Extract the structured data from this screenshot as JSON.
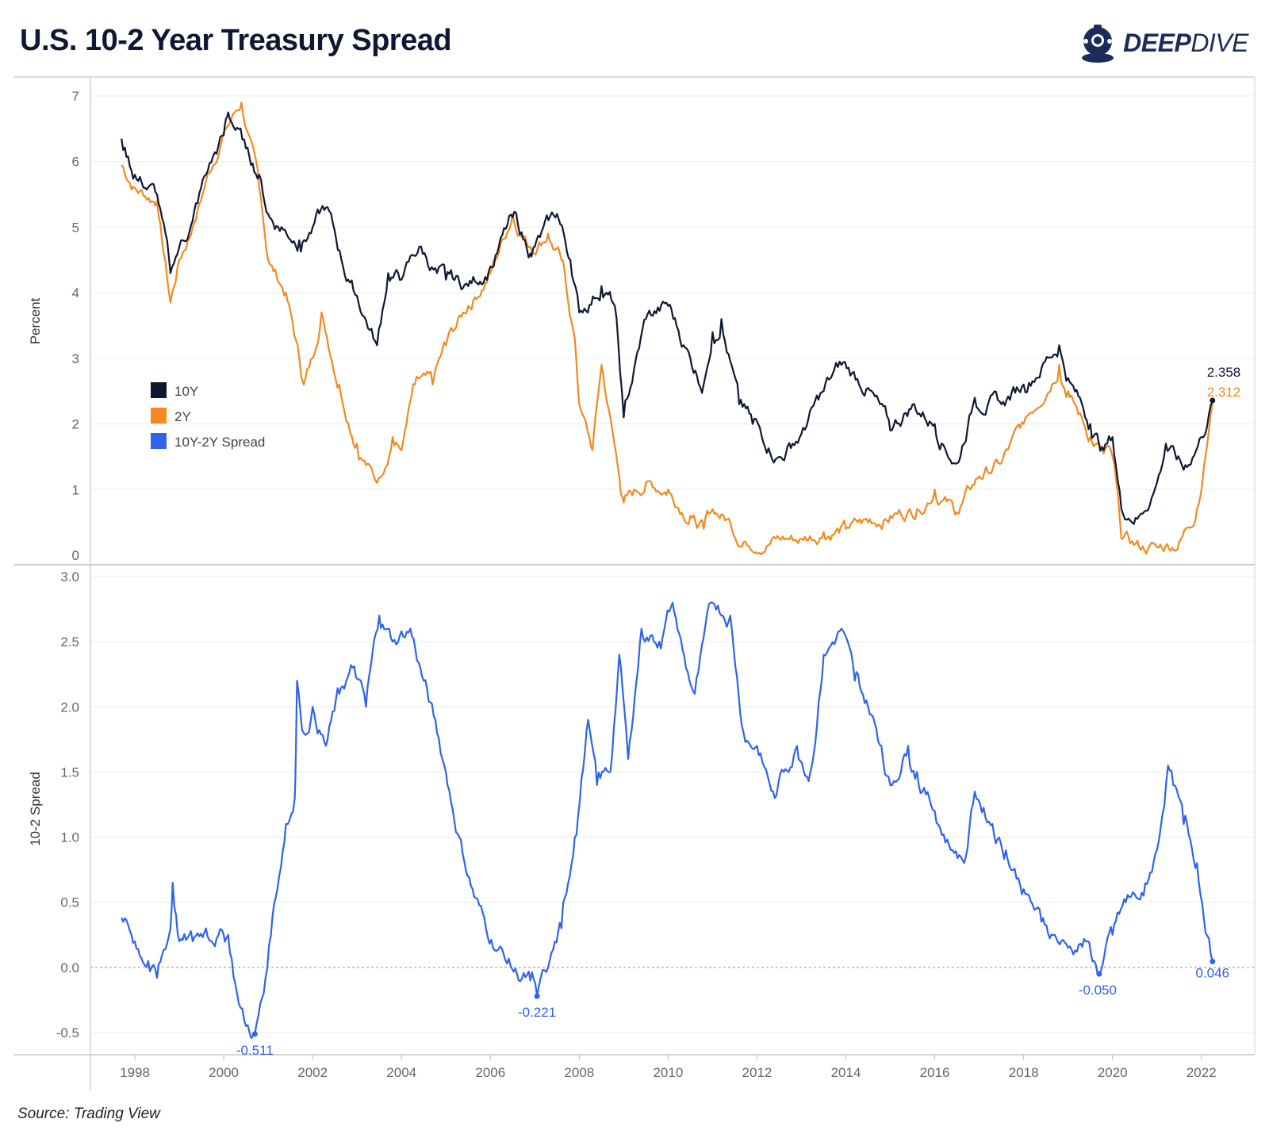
{
  "header": {
    "title": "U.S. 10-2 Year Treasury Spread",
    "brand_bold": "DEEP",
    "brand_light": "DIVE"
  },
  "footer": {
    "source": "Source: Trading View"
  },
  "colors": {
    "y10": "#0f1733",
    "y2": "#f28a1e",
    "spread": "#2e63ea",
    "grid": "#ececec"
  },
  "chart_data": [
    {
      "type": "line",
      "title": "U.S. 10-2 Year Treasury Spread",
      "ylabel": "Percent",
      "ylim": [
        0,
        7
      ],
      "yticks": [
        "0",
        "1",
        "2",
        "3",
        "4",
        "5",
        "6",
        "7"
      ],
      "legend": [
        "10Y",
        "2Y",
        "10Y-2Y Spread"
      ],
      "series": [
        {
          "name": "10Y",
          "points": [
            [
              1997.7,
              6.35
            ],
            [
              1998.0,
              5.8
            ],
            [
              1998.5,
              5.5
            ],
            [
              1998.8,
              4.3
            ],
            [
              1999.0,
              4.7
            ],
            [
              1999.3,
              5.1
            ],
            [
              1999.6,
              5.8
            ],
            [
              2000.0,
              6.4
            ],
            [
              2000.1,
              6.75
            ],
            [
              2000.5,
              6.2
            ],
            [
              2000.8,
              5.8
            ],
            [
              2001.0,
              5.2
            ],
            [
              2001.3,
              5.0
            ],
            [
              2001.7,
              4.8
            ],
            [
              2002.0,
              5.0
            ],
            [
              2002.3,
              5.3
            ],
            [
              2002.8,
              4.2
            ],
            [
              2003.0,
              3.95
            ],
            [
              2003.45,
              3.2
            ],
            [
              2003.7,
              4.3
            ],
            [
              2004.0,
              4.2
            ],
            [
              2004.4,
              4.7
            ],
            [
              2004.8,
              4.3
            ],
            [
              2005.0,
              4.2
            ],
            [
              2005.5,
              4.1
            ],
            [
              2006.0,
              4.4
            ],
            [
              2006.5,
              5.15
            ],
            [
              2006.9,
              4.6
            ],
            [
              2007.0,
              4.7
            ],
            [
              2007.5,
              5.2
            ],
            [
              2007.8,
              4.5
            ],
            [
              2008.0,
              3.7
            ],
            [
              2008.5,
              4.1
            ],
            [
              2008.8,
              3.8
            ],
            [
              2009.0,
              2.1
            ],
            [
              2009.5,
              3.6
            ],
            [
              2010.0,
              3.8
            ],
            [
              2010.5,
              3.0
            ],
            [
              2010.8,
              2.6
            ],
            [
              2011.0,
              3.4
            ],
            [
              2011.2,
              3.6
            ],
            [
              2011.6,
              2.3
            ],
            [
              2011.9,
              2.0
            ],
            [
              2012.5,
              1.5
            ],
            [
              2012.8,
              1.7
            ],
            [
              2013.0,
              1.85
            ],
            [
              2013.5,
              2.5
            ],
            [
              2013.9,
              2.9
            ],
            [
              2014.5,
              2.55
            ],
            [
              2015.0,
              1.9
            ],
            [
              2015.5,
              2.3
            ],
            [
              2016.0,
              2.0
            ],
            [
              2016.5,
              1.4
            ],
            [
              2016.9,
              2.4
            ],
            [
              2017.5,
              2.3
            ],
            [
              2018.0,
              2.6
            ],
            [
              2018.8,
              3.2
            ],
            [
              2019.0,
              2.7
            ],
            [
              2019.5,
              2.0
            ],
            [
              2019.8,
              1.6
            ],
            [
              2020.0,
              1.8
            ],
            [
              2020.2,
              0.7
            ],
            [
              2020.6,
              0.6
            ],
            [
              2021.0,
              1.1
            ],
            [
              2021.2,
              1.7
            ],
            [
              2021.6,
              1.3
            ],
            [
              2022.0,
              1.8
            ],
            [
              2022.25,
              2.358
            ]
          ]
        },
        {
          "name": "2Y",
          "points": [
            [
              1997.7,
              5.95
            ],
            [
              1998.0,
              5.6
            ],
            [
              1998.5,
              5.4
            ],
            [
              1998.8,
              3.85
            ],
            [
              1999.0,
              4.5
            ],
            [
              1999.3,
              5.0
            ],
            [
              1999.6,
              5.7
            ],
            [
              2000.0,
              6.45
            ],
            [
              2000.4,
              6.9
            ],
            [
              2000.8,
              5.6
            ],
            [
              2001.0,
              4.5
            ],
            [
              2001.4,
              4.0
            ],
            [
              2001.7,
              3.0
            ],
            [
              2001.8,
              2.6
            ],
            [
              2002.0,
              3.0
            ],
            [
              2002.2,
              3.7
            ],
            [
              2002.6,
              2.6
            ],
            [
              2003.0,
              1.7
            ],
            [
              2003.45,
              1.1
            ],
            [
              2003.8,
              1.8
            ],
            [
              2004.0,
              1.6
            ],
            [
              2004.3,
              2.6
            ],
            [
              2004.7,
              2.6
            ],
            [
              2005.0,
              3.2
            ],
            [
              2005.5,
              3.8
            ],
            [
              2006.0,
              4.3
            ],
            [
              2006.5,
              5.2
            ],
            [
              2006.9,
              4.7
            ],
            [
              2007.3,
              4.9
            ],
            [
              2007.6,
              4.5
            ],
            [
              2007.9,
              3.3
            ],
            [
              2008.0,
              2.3
            ],
            [
              2008.3,
              1.6
            ],
            [
              2008.5,
              2.9
            ],
            [
              2008.9,
              1.2
            ],
            [
              2009.0,
              0.8
            ],
            [
              2009.5,
              1.1
            ],
            [
              2010.0,
              1.0
            ],
            [
              2010.5,
              0.6
            ],
            [
              2010.8,
              0.4
            ],
            [
              2011.0,
              0.7
            ],
            [
              2011.4,
              0.5
            ],
            [
              2011.7,
              0.2
            ],
            [
              2012.5,
              0.25
            ],
            [
              2013.0,
              0.25
            ],
            [
              2013.5,
              0.35
            ],
            [
              2014.0,
              0.4
            ],
            [
              2014.5,
              0.5
            ],
            [
              2015.0,
              0.6
            ],
            [
              2015.6,
              0.7
            ],
            [
              2016.0,
              1.0
            ],
            [
              2016.5,
              0.65
            ],
            [
              2017.0,
              1.2
            ],
            [
              2017.5,
              1.4
            ],
            [
              2018.0,
              2.0
            ],
            [
              2018.8,
              2.9
            ],
            [
              2019.0,
              2.5
            ],
            [
              2019.5,
              1.8
            ],
            [
              2019.8,
              1.55
            ],
            [
              2020.0,
              1.5
            ],
            [
              2020.2,
              0.25
            ],
            [
              2020.6,
              0.12
            ],
            [
              2021.0,
              0.12
            ],
            [
              2021.5,
              0.2
            ],
            [
              2021.9,
              0.7
            ],
            [
              2022.25,
              2.312
            ]
          ]
        }
      ],
      "annotations": [
        {
          "series": "10Y",
          "x": 2022.25,
          "y": 2.358,
          "label": "2.358"
        },
        {
          "series": "2Y",
          "x": 2022.25,
          "y": 2.312,
          "label": "2.312"
        }
      ]
    },
    {
      "type": "line",
      "ylabel": "10-2 Spread",
      "ylim": [
        -0.65,
        3.0
      ],
      "yticks": [
        "-0.5",
        "0.0",
        "0.5",
        "1.0",
        "1.5",
        "2.0",
        "2.5",
        "3.0"
      ],
      "xlim": [
        1997.0,
        2023.2
      ],
      "xticks": [
        "1998",
        "2000",
        "2002",
        "2004",
        "2006",
        "2008",
        "2010",
        "2012",
        "2014",
        "2016",
        "2018",
        "2020",
        "2022"
      ],
      "reference_line": 0.0,
      "series": [
        {
          "name": "10Y-2Y Spread",
          "points": [
            [
              1997.7,
              0.38
            ],
            [
              1998.0,
              0.2
            ],
            [
              1998.3,
              0.05
            ],
            [
              1998.5,
              -0.08
            ],
            [
              1998.8,
              0.3
            ],
            [
              1998.85,
              0.65
            ],
            [
              1999.0,
              0.2
            ],
            [
              1999.3,
              0.2
            ],
            [
              1999.6,
              0.3
            ],
            [
              2000.0,
              0.25
            ],
            [
              2000.1,
              0.25
            ],
            [
              2000.3,
              -0.2
            ],
            [
              2000.5,
              -0.45
            ],
            [
              2000.7,
              -0.511
            ],
            [
              2000.9,
              -0.2
            ],
            [
              2001.1,
              0.4
            ],
            [
              2001.4,
              1.1
            ],
            [
              2001.6,
              1.3
            ],
            [
              2001.65,
              2.2
            ],
            [
              2001.8,
              1.8
            ],
            [
              2002.0,
              2.0
            ],
            [
              2002.3,
              1.7
            ],
            [
              2002.6,
              2.1
            ],
            [
              2002.9,
              2.3
            ],
            [
              2003.2,
              2.0
            ],
            [
              2003.5,
              2.7
            ],
            [
              2003.8,
              2.5
            ],
            [
              2004.2,
              2.6
            ],
            [
              2004.5,
              2.2
            ],
            [
              2004.8,
              1.8
            ],
            [
              2005.0,
              1.5
            ],
            [
              2005.3,
              1.0
            ],
            [
              2005.6,
              0.6
            ],
            [
              2005.9,
              0.3
            ],
            [
              2006.3,
              0.1
            ],
            [
              2006.6,
              -0.05
            ],
            [
              2006.9,
              -0.1
            ],
            [
              2007.05,
              -0.221
            ],
            [
              2007.3,
              0.0
            ],
            [
              2007.6,
              0.3
            ],
            [
              2007.9,
              1.0
            ],
            [
              2008.2,
              1.9
            ],
            [
              2008.4,
              1.4
            ],
            [
              2008.7,
              1.5
            ],
            [
              2008.9,
              2.4
            ],
            [
              2009.1,
              1.6
            ],
            [
              2009.4,
              2.6
            ],
            [
              2009.8,
              2.5
            ],
            [
              2010.1,
              2.8
            ],
            [
              2010.4,
              2.3
            ],
            [
              2010.6,
              2.1
            ],
            [
              2011.0,
              2.8
            ],
            [
              2011.4,
              2.7
            ],
            [
              2011.7,
              1.8
            ],
            [
              2012.0,
              1.7
            ],
            [
              2012.4,
              1.3
            ],
            [
              2012.6,
              1.5
            ],
            [
              2012.9,
              1.7
            ],
            [
              2013.2,
              1.5
            ],
            [
              2013.5,
              2.4
            ],
            [
              2013.9,
              2.6
            ],
            [
              2014.2,
              2.2
            ],
            [
              2014.5,
              2.0
            ],
            [
              2014.8,
              1.7
            ],
            [
              2015.0,
              1.4
            ],
            [
              2015.4,
              1.7
            ],
            [
              2015.6,
              1.5
            ],
            [
              2016.0,
              1.2
            ],
            [
              2016.4,
              0.9
            ],
            [
              2016.7,
              0.85
            ],
            [
              2016.9,
              1.35
            ],
            [
              2017.3,
              1.1
            ],
            [
              2017.6,
              0.9
            ],
            [
              2018.0,
              0.6
            ],
            [
              2018.4,
              0.35
            ],
            [
              2018.7,
              0.25
            ],
            [
              2019.0,
              0.15
            ],
            [
              2019.4,
              0.2
            ],
            [
              2019.7,
              -0.05
            ],
            [
              2020.0,
              0.25
            ],
            [
              2020.3,
              0.5
            ],
            [
              2020.7,
              0.55
            ],
            [
              2021.0,
              0.9
            ],
            [
              2021.25,
              1.55
            ],
            [
              2021.6,
              1.1
            ],
            [
              2021.9,
              0.8
            ],
            [
              2022.25,
              0.046
            ]
          ]
        }
      ],
      "annotations": [
        {
          "x": 2000.7,
          "y": -0.511,
          "label": "-0.511"
        },
        {
          "x": 2007.05,
          "y": -0.221,
          "label": "-0.221"
        },
        {
          "x": 2019.7,
          "y": -0.05,
          "label": "-0.050"
        },
        {
          "x": 2022.25,
          "y": 0.046,
          "label": "0.046"
        }
      ]
    }
  ]
}
